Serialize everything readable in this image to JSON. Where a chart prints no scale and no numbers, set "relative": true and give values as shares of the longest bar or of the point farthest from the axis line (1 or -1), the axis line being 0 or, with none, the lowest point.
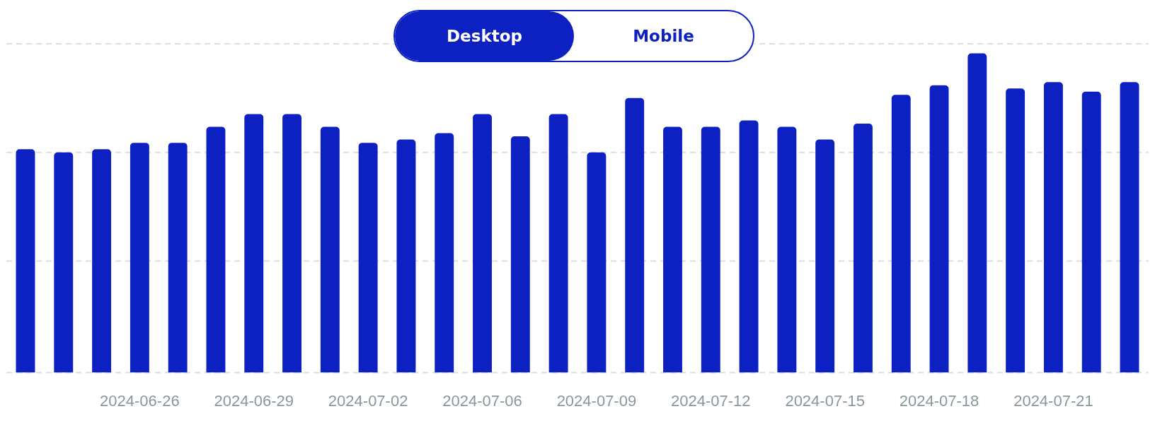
{
  "chart_data": {
    "type": "bar",
    "relative": true,
    "color": "#0d20c2",
    "legend": false,
    "ref_lines": [
      {
        "axis": "y",
        "value": 0,
        "color": "#dddddd",
        "line_style": "dashed"
      },
      {
        "axis": "y",
        "value": 0.35,
        "color": "#dddddd",
        "line_style": "dashed"
      },
      {
        "axis": "y",
        "value": 0.69,
        "color": "#dddddd",
        "line_style": "dashed"
      },
      {
        "axis": "y",
        "value": 1.03,
        "color": "#dddddd",
        "line_style": "dashed"
      }
    ],
    "categories": [
      null,
      null,
      null,
      "2024-06-26",
      null,
      null,
      "2024-06-29",
      null,
      null,
      "2024-07-02",
      null,
      null,
      "2024-07-06",
      null,
      null,
      "2024-07-09",
      null,
      null,
      "2024-07-12",
      null,
      null,
      "2024-07-15",
      null,
      null,
      "2024-07-18",
      null,
      null,
      "2024-07-21",
      null,
      null
    ],
    "values": [
      0.7,
      0.69,
      0.7,
      0.72,
      0.72,
      0.77,
      0.81,
      0.81,
      0.77,
      0.72,
      0.73,
      0.75,
      0.81,
      0.74,
      0.81,
      0.69,
      0.86,
      0.77,
      0.77,
      0.79,
      0.77,
      0.73,
      0.78,
      0.87,
      0.9,
      1,
      0.89,
      0.91,
      0.88,
      0.91
    ],
    "annotations": [
      "Desktop",
      "Mobile"
    ]
  }
}
